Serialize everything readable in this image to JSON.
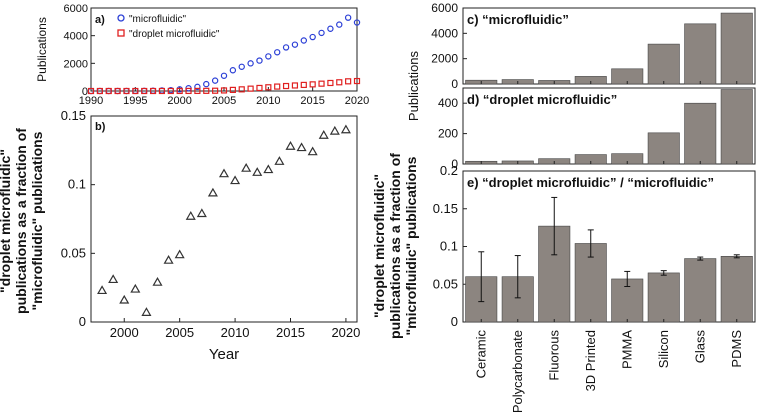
{
  "chart_data": [
    {
      "id": "a",
      "type": "scatter",
      "panel_label": "a)",
      "ylabel": "Publications",
      "xlim": [
        1990,
        2020
      ],
      "ylim": [
        0,
        6000
      ],
      "xticks": [
        1990,
        1995,
        2000,
        2005,
        2010,
        2015,
        2020
      ],
      "yticks": [
        0,
        2000,
        4000,
        6000
      ],
      "legend_position": "top-left",
      "series": [
        {
          "name": "\"microfluidic\"",
          "marker": "circle",
          "color": "#2b3fd6",
          "x": [
            1990,
            1991,
            1992,
            1993,
            1994,
            1995,
            1996,
            1997,
            1998,
            1999,
            2000,
            2001,
            2002,
            2003,
            2004,
            2005,
            2006,
            2007,
            2008,
            2009,
            2010,
            2011,
            2012,
            2013,
            2014,
            2015,
            2016,
            2017,
            2018,
            2019,
            2020
          ],
          "y": [
            0,
            0,
            0,
            0,
            0,
            5,
            10,
            20,
            40,
            60,
            120,
            200,
            300,
            500,
            750,
            1100,
            1500,
            1750,
            2000,
            2200,
            2500,
            2800,
            3150,
            3350,
            3650,
            3900,
            4200,
            4500,
            4800,
            5300,
            4950
          ]
        },
        {
          "name": "\"droplet microfluidic\"",
          "marker": "square",
          "color": "#e02020",
          "x": [
            1990,
            1991,
            1992,
            1993,
            1994,
            1995,
            1996,
            1997,
            1998,
            1999,
            2000,
            2001,
            2002,
            2003,
            2004,
            2005,
            2006,
            2007,
            2008,
            2009,
            2010,
            2011,
            2012,
            2013,
            2014,
            2015,
            2016,
            2017,
            2018,
            2019,
            2020
          ],
          "y": [
            0,
            0,
            0,
            0,
            0,
            0,
            0,
            0,
            1,
            2,
            4,
            5,
            6,
            12,
            20,
            40,
            80,
            120,
            170,
            220,
            270,
            320,
            360,
            400,
            440,
            480,
            530,
            580,
            630,
            700,
            720
          ]
        }
      ]
    },
    {
      "id": "b",
      "type": "scatter",
      "panel_label": "b)",
      "xlabel": "Year",
      "ylabel_lines": [
        "\"droplet microfluidic\"",
        "publications as a fraction of",
        "\"microfluidic\" publications"
      ],
      "xlim": [
        1997,
        2021
      ],
      "ylim": [
        0,
        0.15
      ],
      "xticks": [
        2000,
        2005,
        2010,
        2015,
        2020
      ],
      "yticks": [
        0,
        0.05,
        0.1,
        0.15
      ],
      "ytick_labels": [
        "0",
        "0.05",
        "0.1",
        "0.15"
      ],
      "series": [
        {
          "name": "fraction",
          "marker": "triangle",
          "color": "#333333",
          "x": [
            1998,
            1999,
            2000,
            2001,
            2002,
            2003,
            2004,
            2005,
            2006,
            2007,
            2008,
            2009,
            2010,
            2011,
            2012,
            2013,
            2014,
            2015,
            2016,
            2017,
            2018,
            2019,
            2020
          ],
          "y": [
            0.023,
            0.031,
            0.016,
            0.024,
            0.007,
            0.029,
            0.045,
            0.049,
            0.077,
            0.079,
            0.094,
            0.108,
            0.103,
            0.112,
            0.109,
            0.111,
            0.117,
            0.128,
            0.127,
            0.124,
            0.136,
            0.139,
            0.14
          ]
        }
      ]
    },
    {
      "id": "c",
      "type": "bar",
      "panel_label": "c) “microfluidic”",
      "categories": [
        "Ceramic",
        "Polycarbonate",
        "Fluorous",
        "3D Printed",
        "PMMA",
        "Silicon",
        "Glass",
        "PDMS"
      ],
      "values": [
        300,
        350,
        280,
        600,
        1200,
        3150,
        4750,
        5600
      ],
      "ylim": [
        0,
        6000
      ],
      "yticks": [
        0,
        2000,
        4000,
        6000
      ],
      "ylabel": "Publications",
      "color": "#8c8580"
    },
    {
      "id": "d",
      "type": "bar",
      "panel_label": "d) “droplet microfluidic”",
      "categories": [
        "Ceramic",
        "Polycarbonate",
        "Fluorous",
        "3D Printed",
        "PMMA",
        "Silicon",
        "Glass",
        "PDMS"
      ],
      "values": [
        18,
        20,
        35,
        62,
        68,
        205,
        400,
        490
      ],
      "ylim": [
        0,
        500
      ],
      "yticks": [
        0,
        200,
        400
      ],
      "color": "#8c8580"
    },
    {
      "id": "e",
      "type": "bar",
      "panel_label": "e) “droplet microfluidic” / “microfluidic”",
      "categories": [
        "Ceramic",
        "Polycarbonate",
        "Fluorous",
        "3D Printed",
        "PMMA",
        "Silicon",
        "Glass",
        "PDMS"
      ],
      "values": [
        0.06,
        0.06,
        0.127,
        0.104,
        0.057,
        0.065,
        0.084,
        0.087
      ],
      "errors": [
        0.033,
        0.028,
        0.038,
        0.018,
        0.01,
        0.003,
        0.002,
        0.002
      ],
      "ylim": [
        0,
        0.2
      ],
      "yticks": [
        0,
        0.05,
        0.1,
        0.15,
        0.2
      ],
      "ytick_labels": [
        "0",
        "0.05",
        "0.1",
        "0.15",
        "0.2"
      ],
      "ylabel_lines": [
        "\"droplet microfluidic\"",
        "publications as a fraction of",
        "\"microfluidic\" publications"
      ],
      "color": "#8c8580"
    }
  ]
}
